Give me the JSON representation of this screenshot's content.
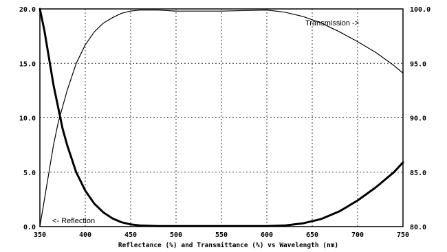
{
  "chart_data": {
    "type": "line",
    "xlabel": "Reflectance (%) and Transmittance (%)  vs  Wavelength (nm)",
    "x_ticks": [
      "350",
      "400",
      "450",
      "500",
      "550",
      "600",
      "650",
      "700",
      "750"
    ],
    "y_left_ticks": [
      "0.0",
      "5.0",
      "10.0",
      "15.0",
      "20.0"
    ],
    "y_right_ticks": [
      "80.0",
      "85.0",
      "90.0",
      "95.0",
      "100.0"
    ],
    "xlim": [
      350,
      750
    ],
    "ylim_left": [
      0,
      20
    ],
    "ylim_right": [
      80,
      100
    ],
    "grid": true,
    "annotations": {
      "transmission": "Transmission ->",
      "reflection": "<- Reflection"
    },
    "series": [
      {
        "name": "Reflection",
        "axis": "left",
        "x": [
          350,
          355,
          360,
          365,
          370,
          375,
          380,
          390,
          400,
          410,
          420,
          430,
          440,
          450,
          460,
          480,
          500,
          550,
          600,
          620,
          640,
          660,
          680,
          700,
          720,
          740,
          750
        ],
        "y": [
          20.0,
          18.0,
          15.5,
          13.0,
          11.0,
          9.0,
          7.5,
          5.0,
          3.3,
          2.1,
          1.3,
          0.75,
          0.4,
          0.2,
          0.1,
          0.05,
          0.05,
          0.05,
          0.05,
          0.1,
          0.3,
          0.7,
          1.4,
          2.4,
          3.6,
          5.0,
          5.9
        ]
      },
      {
        "name": "Transmission",
        "axis": "right",
        "x": [
          350,
          355,
          360,
          365,
          370,
          375,
          380,
          390,
          400,
          410,
          420,
          430,
          440,
          450,
          460,
          480,
          500,
          550,
          600,
          620,
          640,
          660,
          680,
          700,
          720,
          740,
          750
        ],
        "y": [
          80.0,
          82.5,
          85.0,
          87.5,
          89.5,
          91.0,
          92.5,
          95.0,
          96.7,
          97.9,
          98.7,
          99.2,
          99.6,
          99.8,
          99.9,
          99.9,
          99.8,
          99.8,
          99.9,
          99.7,
          99.3,
          98.7,
          97.9,
          97.0,
          96.0,
          94.8,
          94.1
        ]
      }
    ]
  }
}
